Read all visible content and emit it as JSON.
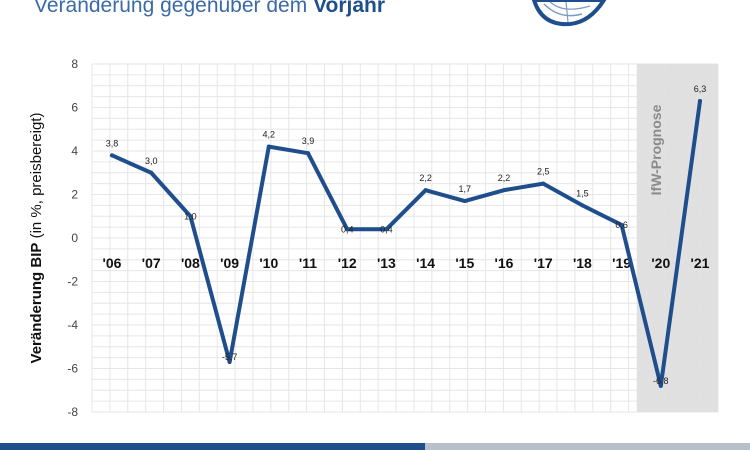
{
  "header": {
    "title_prefix": "Veränderung gegenüber dem",
    "title_bold": "Vorjahr"
  },
  "colors": {
    "line": "#1f4e8c",
    "forecast_band": "#e0e0e0",
    "grid": "#e6e6e6"
  },
  "chart_data": {
    "type": "line",
    "categories": [
      "'06",
      "'07",
      "'08",
      "'09",
      "'10",
      "'11",
      "'12",
      "'13",
      "'14",
      "'15",
      "'16",
      "'17",
      "'18",
      "'19",
      "'20",
      "'21"
    ],
    "values": [
      3.8,
      3.0,
      1.0,
      -5.7,
      4.2,
      3.9,
      0.4,
      0.4,
      2.2,
      1.7,
      2.2,
      2.5,
      1.5,
      0.6,
      -6.8,
      6.3
    ],
    "data_labels": [
      "3,8",
      "3,0",
      "1,0",
      "-5,7",
      "4,2",
      "3,9",
      "0,4",
      "0,4",
      "2,2",
      "1,7",
      "2,2",
      "2,5",
      "1,5",
      "0,6",
      "-6,8",
      "6,3"
    ],
    "ylabel_bold": "Veränderung BIP",
    "ylabel_rest": " (in %, preisbereigt)",
    "ylim": [
      -8,
      8
    ],
    "yticks": [
      -8,
      -6,
      -4,
      -2,
      0,
      2,
      4,
      6,
      8
    ],
    "grid": true,
    "forecast": {
      "label": "IfW-Prognose",
      "start_category": "'20",
      "end_category": "'21"
    }
  }
}
